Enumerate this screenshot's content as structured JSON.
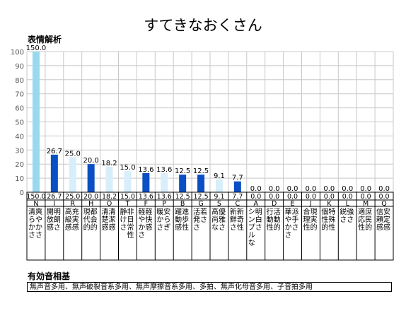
{
  "page": {
    "title": "すてきなおくさん",
    "chart_heading": "表情解析",
    "phonetic_heading": "有効音相基",
    "phonetic_text": "無声音多用、無声破裂音系多用、無声摩擦音系多用、多拍、無声化母音多用、子音拍多用"
  },
  "colors": {
    "top": "#99d9f0",
    "dark": "#0a4fc4",
    "light": "#d8eefa",
    "grid": "#c8c8c8"
  },
  "chart_data": {
    "type": "bar",
    "ylim": [
      0,
      100
    ],
    "yticks": [
      0,
      10,
      20,
      30,
      40,
      50,
      60,
      70,
      80,
      90,
      100
    ],
    "categories": [
      "N",
      "I",
      "R",
      "H",
      "O",
      "T",
      "F",
      "P",
      "B",
      "G",
      "S",
      "C",
      "A",
      "D",
      "E",
      "J",
      "K",
      "L",
      "M",
      "Q"
    ],
    "values": [
      150.0,
      26.7,
      25.0,
      20.0,
      18.2,
      15.0,
      13.6,
      13.6,
      12.5,
      12.5,
      9.1,
      7.7,
      0.0,
      0.0,
      0.0,
      0.0,
      0.0,
      0.0,
      0.0,
      0.0
    ],
    "value_labels": [
      "150.0",
      "26.7",
      "25.0",
      "20.0",
      "18.2",
      "15.0",
      "13.6",
      "13.6",
      "12.5",
      "12.5",
      "9.1",
      "7.7",
      "0.0",
      "0.0",
      "0.0",
      "0.0",
      "0.0",
      "0.0",
      "0.0",
      "0.0"
    ],
    "bar_colors": [
      "top",
      "dark",
      "light",
      "dark",
      "light",
      "light",
      "dark",
      "light",
      "dark",
      "dark",
      "light",
      "dark",
      "light",
      "light",
      "light",
      "light",
      "light",
      "light",
      "light",
      "light"
    ],
    "descriptions": [
      [
        "爽やかさ",
        "清らかさ"
      ],
      [
        "明朗さ",
        "開放感"
      ],
      [
        "充実感",
        "高級感"
      ],
      [
        "都会的",
        "現代的"
      ],
      [
        "清潔感",
        "清楚感"
      ],
      [
        "非日常性",
        "静けさ"
      ],
      [
        "軽快感",
        "軽やかさ"
      ],
      [
        "安らぎ",
        "暖かさ"
      ],
      [
        "進歩性",
        "躍動感"
      ],
      [
        "若さ",
        "活発さ"
      ],
      [
        "優雅さ",
        "高尚な"
      ],
      [
        "新奇性",
        "新鮮さ"
      ],
      [
        "明白さ",
        "シンプルな"
      ],
      [
        "活動的",
        "行動性"
      ],
      [
        "派手さ",
        "華やかさ"
      ],
      [
        "現実的",
        "合理性"
      ],
      [
        "特殊性",
        "個性的"
      ],
      [
        "強さ",
        "鋭さ"
      ],
      [
        "庶民的",
        "適応性"
      ],
      [
        "安定感",
        "信頼感"
      ]
    ]
  }
}
